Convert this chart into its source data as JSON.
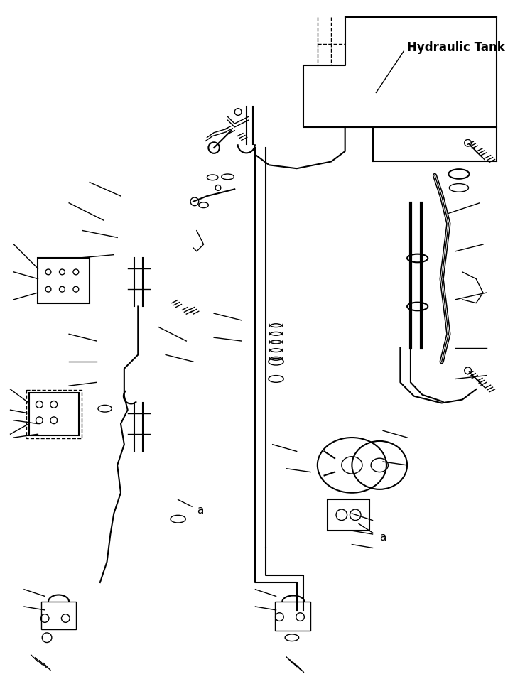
{
  "title": "",
  "hydraulic_tank_label": "Hydraulic Tank",
  "label_a": "a",
  "bg_color": "#ffffff",
  "line_color": "#000000",
  "fig_width": 7.39,
  "fig_height": 9.63,
  "dpi": 100
}
